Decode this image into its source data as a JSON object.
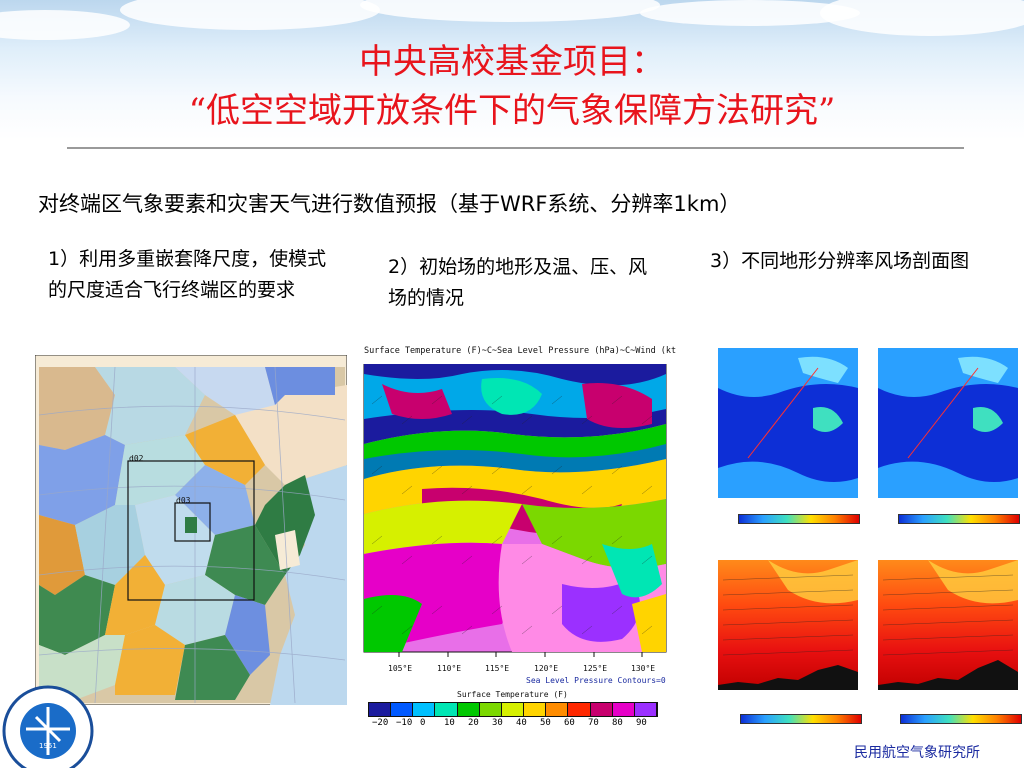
{
  "slide": {
    "title_line1": "中央高校基金项目：",
    "title_line2": "“低空空域开放条件下的气象保障方法研究”",
    "subtitle": "对终端区气象要素和灾害天气进行数值预报（基于WRF系统、分辨率1km）",
    "caption1": "1）利用多重嵌套降尺度，使模式的尺度适合飞行终端区的要求",
    "caption2": "2）初始场的地形及温、压、风场的情况",
    "caption3": "3）不同地形分辨率风场剖面图",
    "footer": "民用航空气象研究所"
  },
  "domain_map": {
    "labels": [
      "d02",
      "d03"
    ]
  },
  "temp_map": {
    "header": "Surface Temperature   (F)~C~Sea Level Pressure   (hPa)~C~Wind   (kt",
    "lon_labels": [
      "105°E",
      "110°E",
      "115°E",
      "120°E",
      "125°E",
      "130°E"
    ],
    "contour_note": "Sea Level Pressure Contours=0",
    "legend_title": "Surface Temperature  (F)",
    "legend_values": [
      "−20",
      "−10",
      "0",
      "10",
      "20",
      "30",
      "40",
      "50",
      "60",
      "70",
      "80",
      "90"
    ],
    "legend_colors": [
      "#1b1b9e",
      "#0059ff",
      "#00c0ff",
      "#00e6b4",
      "#00c800",
      "#7bd800",
      "#d6f000",
      "#ffd400",
      "#ff8c00",
      "#ff2800",
      "#c8006e",
      "#e600c8",
      "#9b30ff"
    ]
  },
  "colors": {
    "title": "#e8141c",
    "footer": "#1a2aa0",
    "rule": "#9a9a9a"
  },
  "logo": {
    "text": "CIVIL AVIATION UNIVERSITY OF CHINA",
    "year": "1951"
  }
}
